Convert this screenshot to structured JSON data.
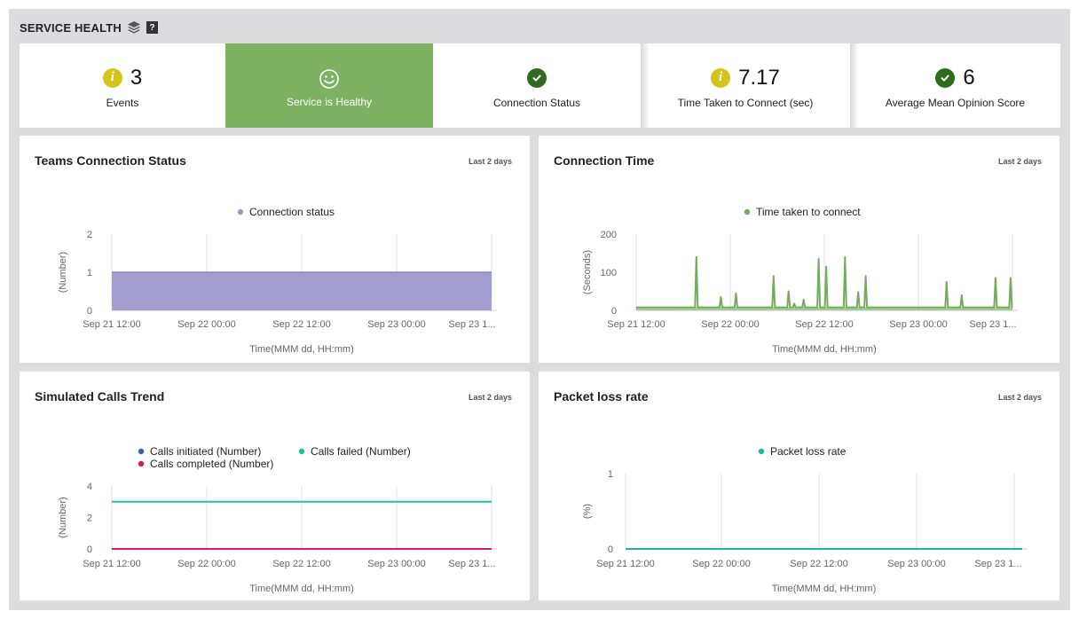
{
  "header": {
    "title": "SERVICE HEALTH",
    "layers_icon": "layers-icon",
    "help_label": "?"
  },
  "kpis": {
    "events": {
      "value": "3",
      "label": "Events",
      "icon": "info-icon"
    },
    "health": {
      "label": "Service is Healthy",
      "icon": "smiley-icon"
    },
    "connection": {
      "label": "Connection Status",
      "icon": "check-icon"
    },
    "time": {
      "value": "7.17",
      "label": "Time Taken to Connect (sec)",
      "icon": "info-icon"
    },
    "mos": {
      "value": "6",
      "label": "Average Mean Opinion Score",
      "icon": "check-icon"
    }
  },
  "colors": {
    "healthy_green": "#7db262",
    "info_yellow": "#d4c41b",
    "check_green": "#2e6b1f",
    "purple": "#9d99cd",
    "green": "#74ab5c",
    "teal": "#1fbf9f",
    "magenta": "#d6186a",
    "blue": "#3a63a8",
    "packet_teal": "#23b3a3"
  },
  "panels": [
    {
      "title": "Teams Connection Status",
      "range": "Last 2 days",
      "chart_data": {
        "type": "area",
        "legend": [
          "Connection status"
        ],
        "ylabel": "(Number)",
        "xlabel": "Time(MMM dd, HH:mm)",
        "yticks": [
          "0",
          "1",
          "2"
        ],
        "ylim": [
          0,
          2
        ],
        "xticks": [
          "Sep 21 12:00",
          "Sep 22 00:00",
          "Sep 22 12:00",
          "Sep 23 00:00",
          "Sep 23 1..."
        ],
        "series": [
          {
            "name": "Connection status",
            "values": [
              1,
              1
            ]
          }
        ]
      }
    },
    {
      "title": "Connection Time",
      "range": "Last 2 days",
      "chart_data": {
        "type": "line",
        "legend": [
          "Time taken to connect"
        ],
        "ylabel": "(Seconds)",
        "xlabel": "Time(MMM dd, HH:mm)",
        "yticks": [
          "0",
          "100",
          "200"
        ],
        "ylim": [
          0,
          200
        ],
        "xticks": [
          "Sep 21 12:00",
          "Sep 22 00:00",
          "Sep 22 12:00",
          "Sep 23 00:00",
          "Sep 23 1..."
        ],
        "baseline": 8,
        "spikes": [
          {
            "pos": 0.16,
            "value": 140
          },
          {
            "pos": 0.225,
            "value": 35
          },
          {
            "pos": 0.265,
            "value": 45
          },
          {
            "pos": 0.365,
            "value": 90
          },
          {
            "pos": 0.405,
            "value": 50
          },
          {
            "pos": 0.42,
            "value": 18
          },
          {
            "pos": 0.445,
            "value": 28
          },
          {
            "pos": 0.485,
            "value": 135
          },
          {
            "pos": 0.505,
            "value": 115
          },
          {
            "pos": 0.555,
            "value": 140
          },
          {
            "pos": 0.59,
            "value": 48
          },
          {
            "pos": 0.61,
            "value": 90
          },
          {
            "pos": 0.825,
            "value": 75
          },
          {
            "pos": 0.865,
            "value": 40
          },
          {
            "pos": 0.955,
            "value": 85
          },
          {
            "pos": 0.995,
            "value": 85
          }
        ]
      }
    },
    {
      "title": "Simulated Calls Trend",
      "range": "Last 2 days",
      "chart_data": {
        "type": "line",
        "legend": [
          "Calls initiated (Number)",
          "Calls failed (Number)",
          "Calls completed (Number)"
        ],
        "ylabel": "(Number)",
        "xlabel": "Time(MMM dd, HH:mm)",
        "yticks": [
          "0",
          "2",
          "4"
        ],
        "ylim": [
          0,
          4
        ],
        "xticks": [
          "Sep 21 12:00",
          "Sep 22 00:00",
          "Sep 22 12:00",
          "Sep 23 00:00",
          "Sep 23 1..."
        ],
        "series": [
          {
            "name": "Calls initiated (Number)",
            "values": [
              0,
              0
            ]
          },
          {
            "name": "Calls failed (Number)",
            "values": [
              3,
              3
            ]
          },
          {
            "name": "Calls completed (Number)",
            "values": [
              0,
              0
            ]
          }
        ]
      }
    },
    {
      "title": "Packet loss rate",
      "range": "Last 2 days",
      "chart_data": {
        "type": "line",
        "legend": [
          "Packet loss rate"
        ],
        "ylabel": "(%)",
        "xlabel": "Time(MMM dd, HH:mm)",
        "yticks": [
          "0",
          "1"
        ],
        "ylim": [
          0,
          1
        ],
        "xticks": [
          "Sep 21 12:00",
          "Sep 22 00:00",
          "Sep 22 12:00",
          "Sep 23 00:00",
          "Sep 23 1..."
        ],
        "series": [
          {
            "name": "Packet loss rate",
            "values": [
              0,
              0
            ]
          }
        ]
      }
    }
  ]
}
